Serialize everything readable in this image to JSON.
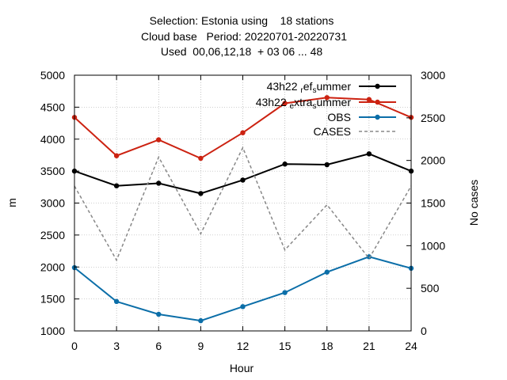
{
  "chart_data": {
    "type": "line",
    "title_lines": [
      "Selection: Estonia using    18 stations",
      "Cloud base   Period: 20220701-20220731",
      "Used  00,06,12,18  + 03 06 ... 48"
    ],
    "xlabel": "Hour",
    "ylabel": "m",
    "y2label": "No cases",
    "x": [
      0,
      3,
      6,
      9,
      12,
      15,
      18,
      21,
      24
    ],
    "xlim": [
      0,
      24
    ],
    "ylim": [
      1000,
      5000
    ],
    "y2lim": [
      0,
      3000
    ],
    "xticks": [
      0,
      3,
      6,
      9,
      12,
      15,
      18,
      21,
      24
    ],
    "yticks": [
      1000,
      1500,
      2000,
      2500,
      3000,
      3500,
      4000,
      4500,
      5000
    ],
    "y2ticks": [
      0,
      500,
      1000,
      1500,
      2000,
      2500,
      3000
    ],
    "grid": true,
    "legend_position": "top-right",
    "series": [
      {
        "name_parts": [
          [
            "43h22 ",
            "n"
          ],
          [
            "r",
            "sub"
          ],
          [
            "ef",
            "n"
          ],
          [
            "s",
            "sub"
          ],
          [
            "ummer",
            "n"
          ]
        ],
        "name": "43h22_ref_summer",
        "color": "#000000",
        "axis": "y",
        "dash": "solid",
        "marker": "dot",
        "values": [
          3500,
          3270,
          3310,
          3150,
          3360,
          3610,
          3600,
          3770,
          3500
        ]
      },
      {
        "name_parts": [
          [
            "43h22 ",
            "n"
          ],
          [
            "e",
            "sub"
          ],
          [
            "xtra",
            "n"
          ],
          [
            "s",
            "sub"
          ],
          [
            "ummer",
            "n"
          ]
        ],
        "name": "43h22_extra_summer",
        "color": "#cc2211",
        "axis": "y",
        "dash": "solid",
        "marker": "dot",
        "values": [
          4340,
          3740,
          3990,
          3700,
          4100,
          4560,
          4650,
          4620,
          4340
        ]
      },
      {
        "name_parts": [
          [
            "OBS",
            "n"
          ]
        ],
        "name": "OBS",
        "color": "#0b6ea8",
        "axis": "y",
        "dash": "solid",
        "marker": "dot",
        "values": [
          1990,
          1460,
          1260,
          1160,
          1380,
          1600,
          1920,
          2160,
          1980
        ]
      },
      {
        "name_parts": [
          [
            "CASES",
            "n"
          ]
        ],
        "name": "CASES",
        "color": "#888888",
        "axis": "y2",
        "dash": "dashed",
        "marker": "none",
        "values": [
          1700,
          830,
          2040,
          1140,
          2150,
          950,
          1480,
          850,
          1700
        ]
      }
    ]
  }
}
